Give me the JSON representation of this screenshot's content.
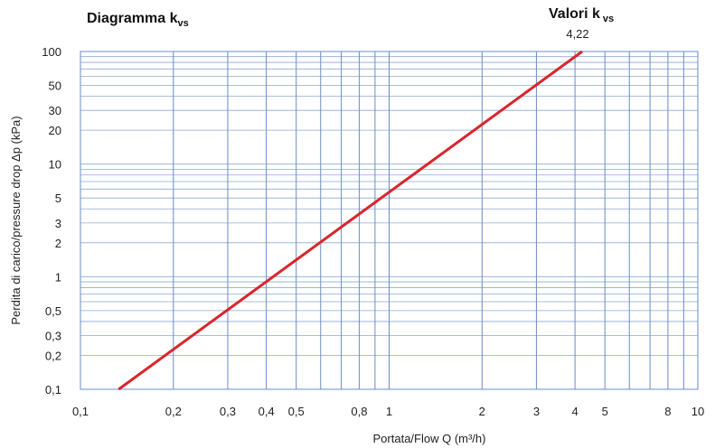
{
  "chart_data": {
    "type": "line",
    "title": {
      "main": "Diagramma k",
      "sub": "vs"
    },
    "series_header": {
      "main": "Valori k",
      "sub": "vs"
    },
    "xlabel": "Portata/Flow Q (m³/h)",
    "ylabel": "Perdita di carico/pressure drop Δp (kPa)",
    "x_scale": "log",
    "y_scale": "log",
    "xlim": [
      0.1,
      10
    ],
    "ylim": [
      0.1,
      100
    ],
    "grid": true,
    "x_ticks": [
      {
        "value": 0.1,
        "label": "0,1"
      },
      {
        "value": 0.2,
        "label": "0,2"
      },
      {
        "value": 0.3,
        "label": "0,3"
      },
      {
        "value": 0.4,
        "label": "0,4"
      },
      {
        "value": 0.5,
        "label": "0,5"
      },
      {
        "value": 0.8,
        "label": "0,8"
      },
      {
        "value": 1,
        "label": "1"
      },
      {
        "value": 2,
        "label": "2"
      },
      {
        "value": 3,
        "label": "3"
      },
      {
        "value": 4,
        "label": "4"
      },
      {
        "value": 5,
        "label": "5"
      },
      {
        "value": 8,
        "label": "8"
      },
      {
        "value": 10,
        "label": "10"
      }
    ],
    "y_ticks": [
      {
        "value": 0.1,
        "label": "0,1"
      },
      {
        "value": 0.2,
        "label": "0,2"
      },
      {
        "value": 0.3,
        "label": "0,3"
      },
      {
        "value": 0.5,
        "label": "0,5"
      },
      {
        "value": 1,
        "label": "1"
      },
      {
        "value": 2,
        "label": "2"
      },
      {
        "value": 3,
        "label": "3"
      },
      {
        "value": 5,
        "label": "5"
      },
      {
        "value": 10,
        "label": "10"
      },
      {
        "value": 20,
        "label": "20"
      },
      {
        "value": 30,
        "label": "30"
      },
      {
        "value": 50,
        "label": "50"
      },
      {
        "value": 100,
        "label": "100"
      }
    ],
    "x_grid_values": [
      0.1,
      0.2,
      0.3,
      0.4,
      0.5,
      0.6,
      0.7,
      0.8,
      0.9,
      1,
      2,
      3,
      4,
      5,
      6,
      7,
      8,
      9,
      10
    ],
    "y_grid_values": [
      0.1,
      0.2,
      0.3,
      0.4,
      0.5,
      0.6,
      0.7,
      0.8,
      0.9,
      1,
      2,
      3,
      4,
      5,
      6,
      7,
      8,
      9,
      10,
      20,
      30,
      40,
      50,
      60,
      70,
      80,
      90,
      100
    ],
    "series": [
      {
        "name": "4,22",
        "color": "#d9262b",
        "points": [
          {
            "x": 0.133,
            "y": 0.1
          },
          {
            "x": 4.22,
            "y": 100
          }
        ]
      }
    ],
    "colors": {
      "grid": "#8ea9d4",
      "gridline_v": "#6a8cc8",
      "line": "#d9262b",
      "frame": "#6a8cc8"
    }
  }
}
